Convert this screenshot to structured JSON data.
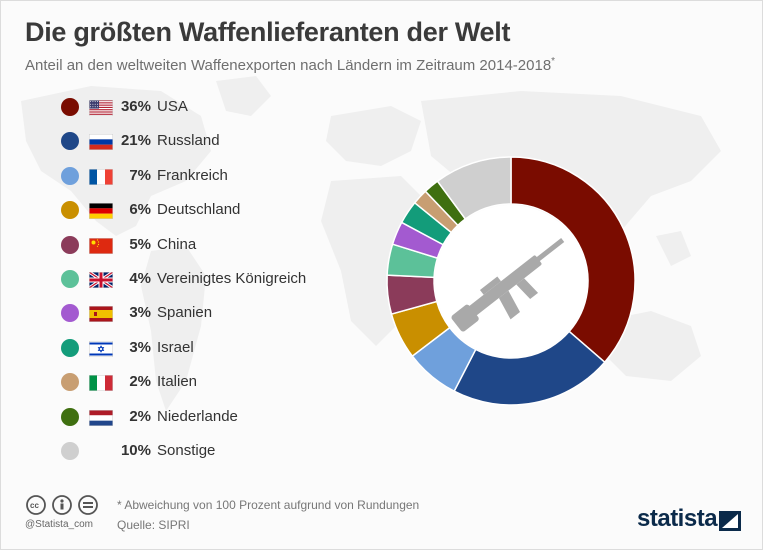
{
  "header": {
    "title": "Die größten Waffenlieferanten der Welt",
    "subtitle": "Anteil an den weltweiten Waffenexporten nach Ländern im Zeitraum 2014-2018",
    "subtitle_mark": "*"
  },
  "footer": {
    "footnote": "* Abweichung von 100 Prozent aufgrund von Rundungen",
    "source": "Quelle: SIPRI",
    "handle": "@Statista_com",
    "brand": "statista"
  },
  "chart_data": {
    "type": "pie",
    "donut": true,
    "center_icon": "rifle-icon",
    "categories": [
      "USA",
      "Russland",
      "Frankreich",
      "Deutschland",
      "China",
      "Vereinigtes Königreich",
      "Spanien",
      "Israel",
      "Italien",
      "Niederlande",
      "Sonstige"
    ],
    "values": [
      36,
      21,
      7,
      6,
      5,
      4,
      3,
      3,
      2,
      2,
      10
    ],
    "labels": [
      "36%",
      "21%",
      "7%",
      "6%",
      "5%",
      "4%",
      "3%",
      "3%",
      "2%",
      "2%",
      "10%"
    ],
    "flags": [
      "us-flag",
      "ru-flag",
      "fr-flag",
      "de-flag",
      "cn-flag",
      "gb-flag",
      "es-flag",
      "il-flag",
      "it-flag",
      "nl-flag",
      ""
    ],
    "colors": [
      "#7a0c00",
      "#1f4788",
      "#6fa0dc",
      "#c98f00",
      "#8b3b5a",
      "#5cc199",
      "#a35ad0",
      "#139c7a",
      "#c89e72",
      "#3f6f10",
      "#cfcfcf"
    ],
    "legend_position": "left"
  }
}
